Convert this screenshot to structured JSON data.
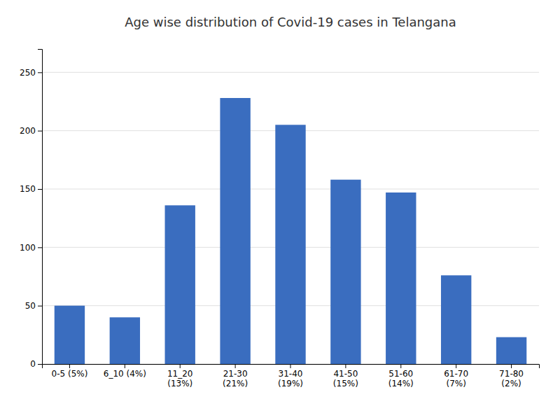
{
  "chart_data": {
    "type": "bar",
    "title": "Age wise distribution of Covid-19 cases in Telangana",
    "categories": [
      "0-5 (5%)",
      "6_10 (4%)",
      "11_20\n(13%)",
      "21-30\n(21%)",
      "31-40\n(19%)",
      "41-50\n(15%)",
      "51-60\n(14%)",
      "61-70\n(7%)",
      "71-80\n(2%)"
    ],
    "values": [
      50,
      40,
      136,
      228,
      205,
      158,
      147,
      76,
      23
    ],
    "color": "#3A6DBF",
    "ylim": [
      0,
      270
    ],
    "yticks": [
      0,
      50,
      100,
      150,
      200,
      250
    ],
    "grid": true
  }
}
